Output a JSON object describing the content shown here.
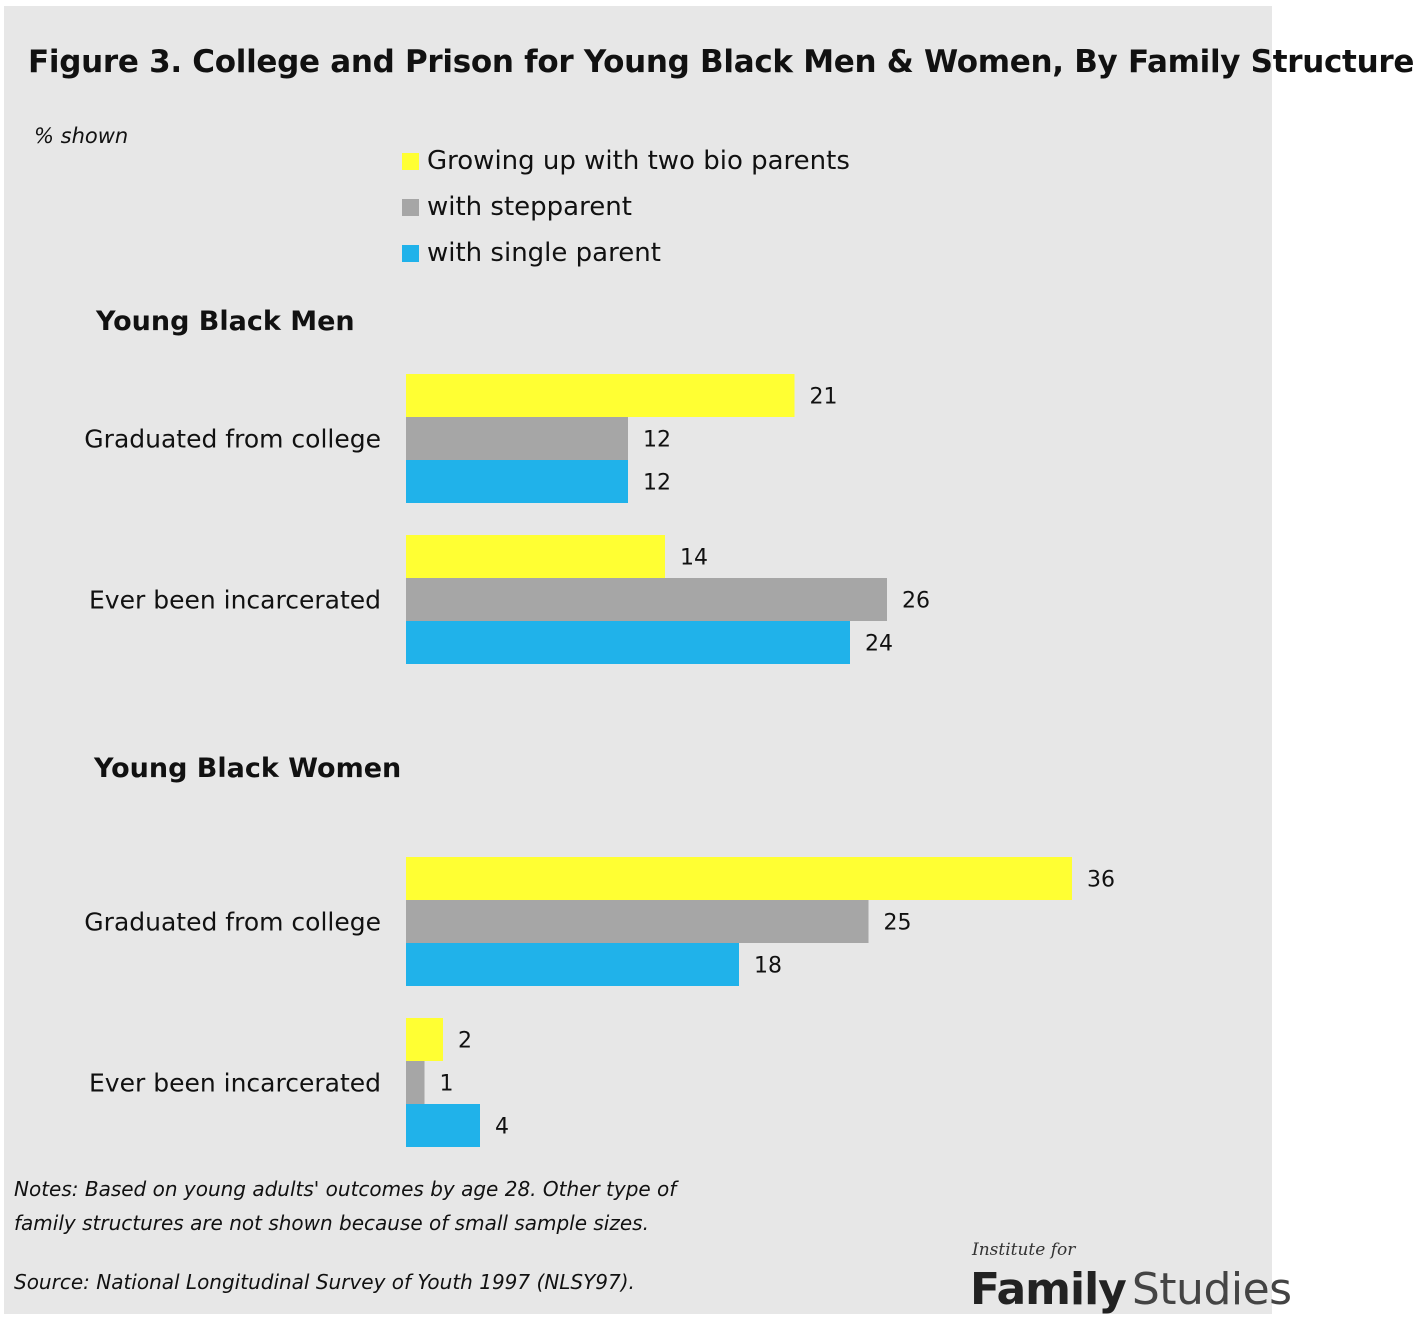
{
  "title": "Figure 3. College and Prison for Young Black Men & Women, By Family Structure",
  "subtitle": "% shown",
  "colors": {
    "two_bio": "#ffff33",
    "stepparent": "#a6a6a6",
    "single": "#20b2ea",
    "background": "#e7e7e7"
  },
  "legend": [
    {
      "label": "Growing up with two bio parents",
      "color": "#ffff33"
    },
    {
      "label": "with stepparent",
      "color": "#a6a6a6"
    },
    {
      "label": "with single parent",
      "color": "#20b2ea"
    }
  ],
  "chart_data": [
    {
      "type": "bar",
      "orientation": "horizontal",
      "title": "Young Black Men",
      "categories": [
        "Graduated from college",
        "Ever been incarcerated"
      ],
      "series": [
        {
          "name": "Growing up with two bio parents",
          "values": [
            21,
            14
          ]
        },
        {
          "name": "with stepparent",
          "values": [
            12,
            26
          ]
        },
        {
          "name": "with single parent",
          "values": [
            12,
            24
          ]
        }
      ],
      "unit": "%",
      "data_labels": true,
      "grid": false
    },
    {
      "type": "bar",
      "orientation": "horizontal",
      "title": "Young Black Women",
      "categories": [
        "Graduated from college",
        "Ever been incarcerated"
      ],
      "series": [
        {
          "name": "Growing up with two bio parents",
          "values": [
            36,
            2
          ]
        },
        {
          "name": "with stepparent",
          "values": [
            25,
            1
          ]
        },
        {
          "name": "with single parent",
          "values": [
            18,
            4
          ]
        }
      ],
      "unit": "%",
      "data_labels": true,
      "grid": false
    }
  ],
  "notes": [
    "Notes: Based on young adults' outcomes by age 28. Other type of",
    "family structures are not shown because of small sample sizes."
  ],
  "source": "Source: National Longitudinal Survey of Youth 1997 (NLSY97).",
  "logo": {
    "top": "Institute for",
    "family": "Family",
    "studies": "Studies"
  }
}
